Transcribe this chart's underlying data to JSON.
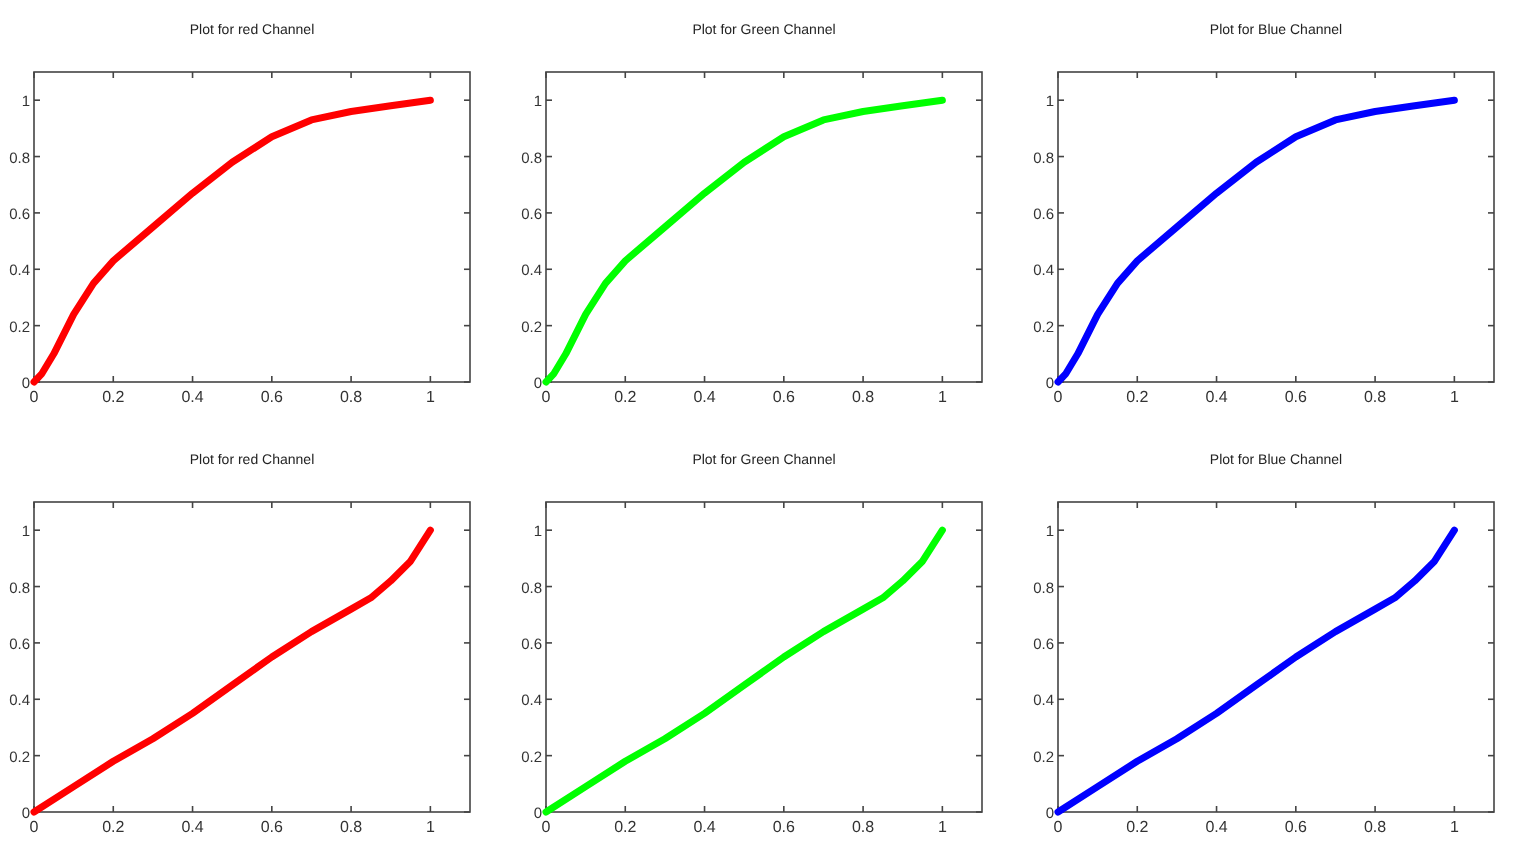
{
  "chart_data": [
    {
      "type": "line",
      "title": "Plot for red Channel",
      "x": [
        0,
        0.02,
        0.05,
        0.1,
        0.15,
        0.2,
        0.3,
        0.4,
        0.5,
        0.6,
        0.7,
        0.8,
        0.9,
        1
      ],
      "series": [
        {
          "color": "#ff0000",
          "values": [
            0,
            0.03,
            0.1,
            0.24,
            0.35,
            0.43,
            0.55,
            0.67,
            0.78,
            0.87,
            0.93,
            0.96,
            0.98,
            1
          ]
        }
      ],
      "xlim": [
        0,
        1.1
      ],
      "ylim": [
        0,
        1.1
      ],
      "xticks": [
        0,
        0.2,
        0.4,
        0.6,
        0.8,
        1
      ],
      "yticks": [
        0,
        0.2,
        0.4,
        0.6,
        0.8,
        1
      ],
      "grid": false,
      "marker": "none",
      "line_style": "solid"
    },
    {
      "type": "line",
      "title": "Plot for Green Channel",
      "x": [
        0,
        0.02,
        0.05,
        0.1,
        0.15,
        0.2,
        0.3,
        0.4,
        0.5,
        0.6,
        0.7,
        0.8,
        0.9,
        1
      ],
      "series": [
        {
          "color": "#00ff00",
          "values": [
            0,
            0.03,
            0.1,
            0.24,
            0.35,
            0.43,
            0.55,
            0.67,
            0.78,
            0.87,
            0.93,
            0.96,
            0.98,
            1
          ]
        }
      ],
      "xlim": [
        0,
        1.1
      ],
      "ylim": [
        0,
        1.1
      ],
      "xticks": [
        0,
        0.2,
        0.4,
        0.6,
        0.8,
        1
      ],
      "yticks": [
        0,
        0.2,
        0.4,
        0.6,
        0.8,
        1
      ],
      "grid": false,
      "marker": "none",
      "line_style": "solid"
    },
    {
      "type": "line",
      "title": "Plot for Blue Channel",
      "x": [
        0,
        0.02,
        0.05,
        0.1,
        0.15,
        0.2,
        0.3,
        0.4,
        0.5,
        0.6,
        0.7,
        0.8,
        0.9,
        1
      ],
      "series": [
        {
          "color": "#0000ff",
          "values": [
            0,
            0.03,
            0.1,
            0.24,
            0.35,
            0.43,
            0.55,
            0.67,
            0.78,
            0.87,
            0.93,
            0.96,
            0.98,
            1
          ]
        }
      ],
      "xlim": [
        0,
        1.1
      ],
      "ylim": [
        0,
        1.1
      ],
      "xticks": [
        0,
        0.2,
        0.4,
        0.6,
        0.8,
        1
      ],
      "yticks": [
        0,
        0.2,
        0.4,
        0.6,
        0.8,
        1
      ],
      "grid": false,
      "marker": "none",
      "line_style": "solid"
    },
    {
      "type": "line",
      "title": "Plot for red Channel",
      "x": [
        0,
        0.1,
        0.2,
        0.3,
        0.4,
        0.5,
        0.6,
        0.7,
        0.8,
        0.85,
        0.9,
        0.95,
        1
      ],
      "series": [
        {
          "color": "#ff0000",
          "values": [
            0,
            0.09,
            0.18,
            0.26,
            0.35,
            0.45,
            0.55,
            0.64,
            0.72,
            0.76,
            0.82,
            0.89,
            1
          ]
        }
      ],
      "xlim": [
        0,
        1.1
      ],
      "ylim": [
        0,
        1.1
      ],
      "xticks": [
        0,
        0.2,
        0.4,
        0.6,
        0.8,
        1
      ],
      "yticks": [
        0,
        0.2,
        0.4,
        0.6,
        0.8,
        1
      ],
      "grid": false,
      "marker": "none",
      "line_style": "solid"
    },
    {
      "type": "line",
      "title": "Plot for Green Channel",
      "x": [
        0,
        0.1,
        0.2,
        0.3,
        0.4,
        0.5,
        0.6,
        0.7,
        0.8,
        0.85,
        0.9,
        0.95,
        1
      ],
      "series": [
        {
          "color": "#00ff00",
          "values": [
            0,
            0.09,
            0.18,
            0.26,
            0.35,
            0.45,
            0.55,
            0.64,
            0.72,
            0.76,
            0.82,
            0.89,
            1
          ]
        }
      ],
      "xlim": [
        0,
        1.1
      ],
      "ylim": [
        0,
        1.1
      ],
      "xticks": [
        0,
        0.2,
        0.4,
        0.6,
        0.8,
        1
      ],
      "yticks": [
        0,
        0.2,
        0.4,
        0.6,
        0.8,
        1
      ],
      "grid": false,
      "marker": "none",
      "line_style": "solid"
    },
    {
      "type": "line",
      "title": "Plot for Blue Channel",
      "x": [
        0,
        0.1,
        0.2,
        0.3,
        0.4,
        0.5,
        0.6,
        0.7,
        0.8,
        0.85,
        0.9,
        0.95,
        1
      ],
      "series": [
        {
          "color": "#0000ff",
          "values": [
            0,
            0.09,
            0.18,
            0.26,
            0.35,
            0.45,
            0.55,
            0.64,
            0.72,
            0.76,
            0.82,
            0.89,
            1
          ]
        }
      ],
      "xlim": [
        0,
        1.1
      ],
      "ylim": [
        0,
        1.1
      ],
      "xticks": [
        0,
        0.2,
        0.4,
        0.6,
        0.8,
        1
      ],
      "yticks": [
        0,
        0.2,
        0.4,
        0.6,
        0.8,
        1
      ],
      "grid": false,
      "marker": "none",
      "line_style": "solid"
    }
  ]
}
